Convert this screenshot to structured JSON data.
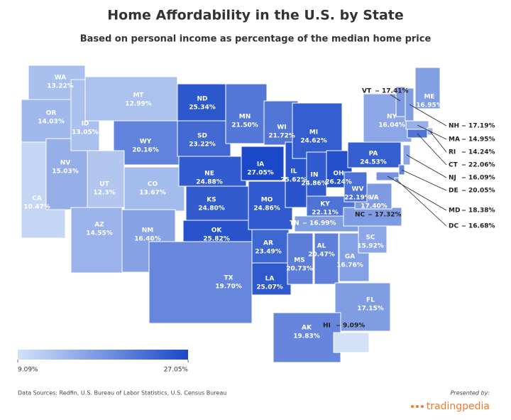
{
  "chart_data": {
    "type": "choropleth",
    "title": "Home Affordability in the U.S. by State",
    "subtitle": "Based on personal income as percentage of the median home price",
    "categories": [
      "WA",
      "OR",
      "CA",
      "NV",
      "ID",
      "MT",
      "WY",
      "UT",
      "CO",
      "AZ",
      "NM",
      "ND",
      "SD",
      "NE",
      "KS",
      "OK",
      "TX",
      "MN",
      "IA",
      "MO",
      "AR",
      "LA",
      "WI",
      "IL",
      "MI",
      "IN",
      "OH",
      "KY",
      "TN",
      "MS",
      "AL",
      "GA",
      "FL",
      "SC",
      "NC",
      "VA",
      "WV",
      "PA",
      "NY",
      "ME",
      "VT",
      "NH",
      "MA",
      "RI",
      "CT",
      "NJ",
      "DE",
      "MD",
      "DC",
      "AK",
      "HI"
    ],
    "values": [
      13.22,
      14.03,
      10.47,
      15.03,
      13.05,
      12.99,
      20.16,
      12.3,
      13.67,
      14.55,
      16.4,
      25.34,
      23.22,
      24.88,
      24.8,
      25.82,
      19.7,
      21.5,
      27.05,
      24.86,
      23.49,
      25.07,
      21.72,
      25.62,
      24.62,
      24.86,
      26.24,
      22.11,
      16.99,
      20.73,
      20.47,
      16.76,
      17.15,
      15.92,
      17.32,
      17.4,
      22.19,
      24.53,
      16.04,
      16.95,
      17.41,
      17.19,
      14.95,
      14.24,
      22.06,
      16.09,
      20.05,
      18.38,
      16.68,
      19.83,
      9.09
    ],
    "value_labels": [
      "13.22%",
      "14.03%",
      "10.47%",
      "15.03%",
      "13.05%",
      "12.99%",
      "20.16%",
      "12.3%",
      "13.67%",
      "14.55%",
      "16.40%",
      "25.34%",
      "23.22%",
      "24.88%",
      "24.80%",
      "25.82%",
      "19.70%",
      "21.50%",
      "27.05%",
      "24.86%",
      "23.49%",
      "25.07%",
      "21.72%",
      "25.62%",
      "24.62%",
      "24.86%",
      "26.24%",
      "22.11%",
      "16.99%",
      "20.73%",
      "20.47%",
      "16.76%",
      "17.15%",
      "15.92%",
      "17.32%",
      "17.40%",
      "22.19%",
      "24.53%",
      "16.04%",
      "16.95%",
      "17.41%",
      "17.19%",
      "14.95%",
      "14.24%",
      "22.06%",
      "16.09%",
      "20.05%",
      "18.38%",
      "16.68%",
      "19.83%",
      "9.09%"
    ],
    "legend": {
      "min": {
        "value": 9.09,
        "label": "9.09%"
      },
      "max": {
        "value": 27.05,
        "label": "27.05%"
      },
      "colors": [
        "#d3e2f9",
        "#1b48c8"
      ]
    },
    "source": "Data Sources: Redfin, U.S. Bureau of Labor Statistics, U.S. Census Bureau",
    "presented_by": "Presented by:",
    "brand": "tradingpedia"
  }
}
